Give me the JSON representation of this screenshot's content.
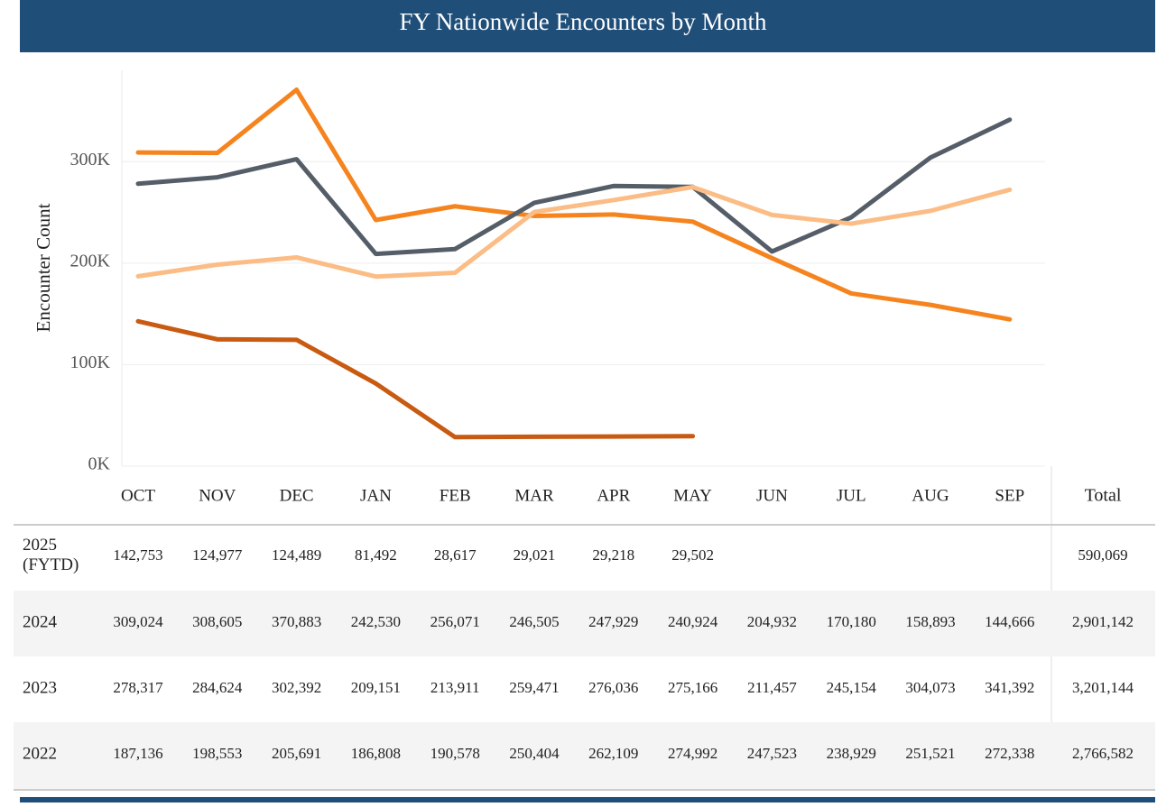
{
  "chart_data": {
    "type": "line",
    "title": "FY Nationwide Encounters by Month",
    "y_label": "Encounter Count",
    "categories": [
      "OCT",
      "NOV",
      "DEC",
      "JAN",
      "FEB",
      "MAR",
      "APR",
      "MAY",
      "JUN",
      "JUL",
      "AUG",
      "SEP"
    ],
    "ylim": [
      0,
      390000
    ],
    "yticks": [
      {
        "value": 0,
        "label": "0K"
      },
      {
        "value": 100000,
        "label": "100K"
      },
      {
        "value": 200000,
        "label": "200K"
      },
      {
        "value": 300000,
        "label": "300K"
      }
    ],
    "grid": true,
    "series": [
      {
        "name": "2025 (FYTD)",
        "color": "#c85a11",
        "values": [
          142753,
          124977,
          124489,
          81492,
          28617,
          29021,
          29218,
          29502,
          null,
          null,
          null,
          null
        ],
        "value_labels": [
          "142,753",
          "124,977",
          "124,489",
          "81,492",
          "28,617",
          "29,021",
          "29,218",
          "29,502",
          null,
          null,
          null,
          null
        ]
      },
      {
        "name": "2024",
        "color": "#f5841f",
        "values": [
          309024,
          308605,
          370883,
          242530,
          256071,
          246505,
          247929,
          240924,
          204932,
          170180,
          158893,
          144666
        ],
        "value_labels": [
          "309,024",
          "308,605",
          "370,883",
          "242,530",
          "256,071",
          "246,505",
          "247,929",
          "240,924",
          "204,932",
          "170,180",
          "158,893",
          "144,666"
        ]
      },
      {
        "name": "2023",
        "color": "#555e68",
        "values": [
          278317,
          284624,
          302392,
          209151,
          213911,
          259471,
          276036,
          275166,
          211457,
          245154,
          304073,
          341392
        ],
        "value_labels": [
          "278,317",
          "284,624",
          "302,392",
          "209,151",
          "213,911",
          "259,471",
          "276,036",
          "275,166",
          "211,457",
          "245,154",
          "304,073",
          "341,392"
        ]
      },
      {
        "name": "2022",
        "color": "#fbbd85",
        "values": [
          187136,
          198553,
          205691,
          186808,
          190578,
          250404,
          262109,
          274992,
          247523,
          238929,
          251521,
          272338
        ],
        "value_labels": [
          "187,136",
          "198,553",
          "205,691",
          "186,808",
          "190,578",
          "250,404",
          "262,109",
          "274,992",
          "247,523",
          "238,929",
          "251,521",
          "272,338"
        ]
      }
    ]
  },
  "table": {
    "total_header": "Total",
    "totals": [
      "590,069",
      "2,901,142",
      "3,201,144",
      "2,766,582"
    ]
  }
}
